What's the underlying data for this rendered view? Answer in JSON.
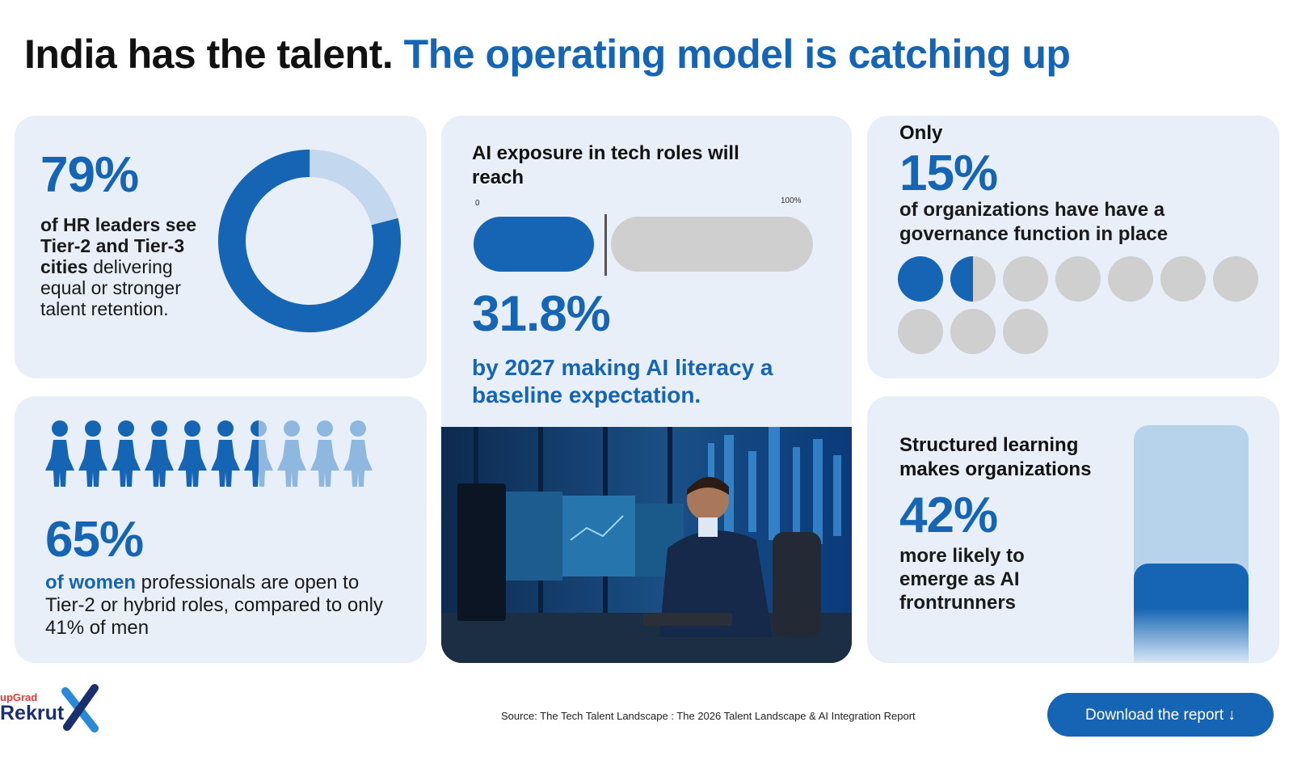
{
  "title": {
    "part1": "India has the talent.",
    "part2": "The operating model is catching up"
  },
  "card_retention": {
    "value": "79%",
    "donut_fraction": 0.79,
    "text_bold": "of HR leaders see Tier-2 and Tier-3 cities",
    "text_rest": "delivering equal or stronger talent retention."
  },
  "card_women": {
    "people_filled": 6.5,
    "people_total": 10,
    "value": "65%",
    "text_highlight": "of women",
    "text_rest": "professionals are open to Tier-2 or hybrid roles, compared to only 41% of men"
  },
  "card_ai_exposure": {
    "lead": "AI exposure in tech roles will reach",
    "tick_min": "0",
    "tick_max": "100%",
    "progress_fraction": 0.318,
    "value": "31.8%",
    "sub": "by 2027 making AI literacy a baseline expectation."
  },
  "card_governance": {
    "prefix": "Only",
    "value": "15%",
    "text": "of organizations have have a governance function in place",
    "dots_filled": 1.5,
    "dots_total": 10
  },
  "card_structured": {
    "lead": "Structured learning makes organizations",
    "value": "42%",
    "text": "more likely to emerge as AI frontrunners",
    "bar_fraction": 0.42
  },
  "footer": {
    "logo_small": "upGrad",
    "logo_main": "Rekrut",
    "source": "Source: The Tech Talent Landscape : The 2026 Talent Landscape & AI Integration Report",
    "download_label": "Download the report ↓"
  },
  "colors": {
    "accent": "#1565b4",
    "light_accent": "#b7d3ec",
    "card_bg": "#e8eff8",
    "grey": "#cfcfcf"
  }
}
